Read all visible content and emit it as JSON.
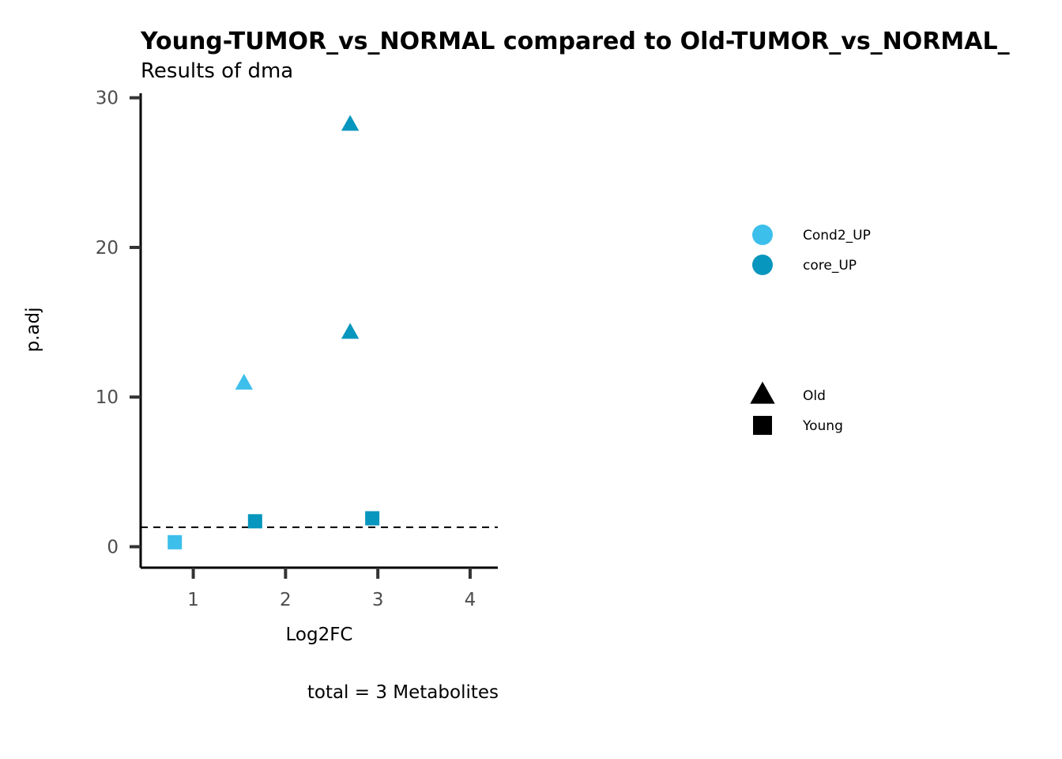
{
  "chart_data": {
    "type": "scatter",
    "title": "Young-TUMOR_vs_NORMAL compared to Old-TUMOR_vs_NORMAL_",
    "subtitle": "Results of dma",
    "xlabel": "Log2FC",
    "ylabel": "p.adj",
    "caption": "total = 3 Metabolites",
    "xlim": [
      0.43,
      4.3
    ],
    "ylim": [
      -1.4,
      30.3
    ],
    "xticks": [
      1,
      2,
      3,
      4
    ],
    "yticks": [
      0,
      10,
      20,
      30
    ],
    "threshold_line": 1.3,
    "grid": false,
    "legend_position": "right",
    "color_legend": [
      {
        "label": "Cond2_UP",
        "color": "#3dbfeb"
      },
      {
        "label": "core_UP",
        "color": "#0796bd"
      }
    ],
    "shape_legend": [
      {
        "label": "Old",
        "shape": "triangle"
      },
      {
        "label": "Young",
        "shape": "square"
      }
    ],
    "points": [
      {
        "x": 2.7,
        "y": 28.2,
        "group": "Old",
        "category": "core_UP"
      },
      {
        "x": 2.7,
        "y": 14.3,
        "group": "Old",
        "category": "core_UP"
      },
      {
        "x": 1.55,
        "y": 10.9,
        "group": "Old",
        "category": "Cond2_UP"
      },
      {
        "x": 0.8,
        "y": 0.3,
        "group": "Young",
        "category": "Cond2_UP"
      },
      {
        "x": 1.67,
        "y": 1.7,
        "group": "Young",
        "category": "core_UP"
      },
      {
        "x": 2.94,
        "y": 1.9,
        "group": "Young",
        "category": "core_UP"
      }
    ]
  }
}
